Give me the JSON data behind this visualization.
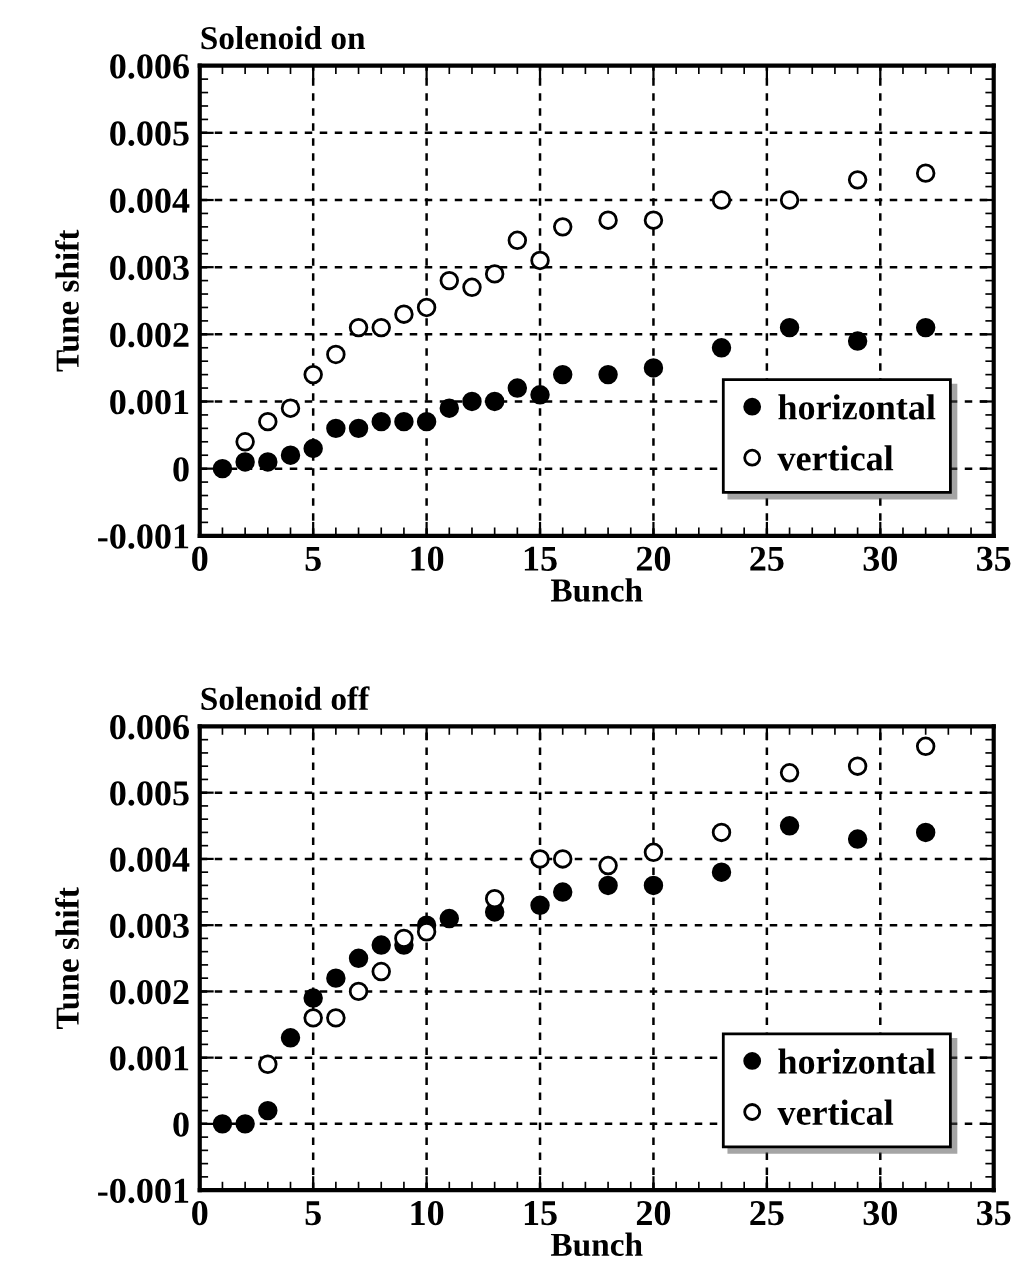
{
  "chart_data": [
    {
      "type": "scatter",
      "title": "Solenoid on",
      "xlabel": "Bunch",
      "ylabel": "Tune shift",
      "xlim": [
        0,
        35
      ],
      "xticks": [
        0,
        5,
        10,
        15,
        20,
        25,
        30,
        35
      ],
      "ylim": [
        -0.001,
        0.006
      ],
      "yticks": [
        -0.001,
        0,
        0.001,
        0.002,
        0.003,
        0.004,
        0.005,
        0.006
      ],
      "grid": true,
      "legend": "bottom right",
      "marker": "circle",
      "series": [
        {
          "name": "horizontal",
          "color": "#000000",
          "x": [
            1,
            2,
            3,
            4,
            5,
            6,
            7,
            8,
            9,
            10,
            11,
            12,
            13,
            14,
            15,
            16,
            18,
            20,
            23,
            26,
            29,
            32
          ],
          "values": [
            0,
            0.0001,
            0.0001,
            0.0002,
            0.0003,
            0.0006,
            0.0006,
            0.0007,
            0.0007,
            0.0007,
            0.0009,
            0.001,
            0.001,
            0.0012,
            0.0011,
            0.0014,
            0.0014,
            0.0015,
            0.0018,
            0.0021,
            0.0019,
            0.0021
          ]
        },
        {
          "name": "vertical",
          "color": "#ffffff",
          "x": [
            2,
            3,
            4,
            5,
            6,
            7,
            8,
            9,
            10,
            11,
            12,
            13,
            14,
            15,
            16,
            18,
            20,
            23,
            26,
            29,
            32
          ],
          "values": [
            0.0004,
            0.0007,
            0.0009,
            0.0014,
            0.0017,
            0.0021,
            0.0021,
            0.0023,
            0.0024,
            0.0028,
            0.0027,
            0.0029,
            0.0034,
            0.0031,
            0.0036,
            0.0037,
            0.0037,
            0.004,
            0.004,
            0.0043,
            0.0044
          ]
        }
      ]
    },
    {
      "type": "scatter",
      "title": "Solenoid off",
      "xlabel": "Bunch",
      "ylabel": "Tune shift",
      "xlim": [
        0,
        35
      ],
      "xticks": [
        0,
        5,
        10,
        15,
        20,
        25,
        30,
        35
      ],
      "ylim": [
        -0.001,
        0.006
      ],
      "yticks": [
        -0.001,
        0,
        0.001,
        0.002,
        0.003,
        0.004,
        0.005,
        0.006
      ],
      "grid": true,
      "legend": "bottom right",
      "marker": "circle",
      "series": [
        {
          "name": "horizontal",
          "color": "#000000",
          "x": [
            1,
            2,
            3,
            4,
            5,
            6,
            7,
            8,
            9,
            10,
            11,
            13,
            15,
            16,
            18,
            20,
            23,
            26,
            29,
            32
          ],
          "values": [
            0,
            0,
            0.0002,
            0.0013,
            0.0019,
            0.0022,
            0.0025,
            0.0027,
            0.0027,
            0.003,
            0.0031,
            0.0032,
            0.0033,
            0.0035,
            0.0036,
            0.0036,
            0.0038,
            0.0045,
            0.0043,
            0.0044
          ]
        },
        {
          "name": "vertical",
          "color": "#ffffff",
          "x": [
            3,
            5,
            6,
            7,
            8,
            9,
            10,
            13,
            15,
            16,
            18,
            20,
            23,
            26,
            29,
            32
          ],
          "values": [
            0.0009,
            0.0016,
            0.0016,
            0.002,
            0.0023,
            0.0028,
            0.0029,
            0.0034,
            0.004,
            0.004,
            0.0039,
            0.0041,
            0.0044,
            0.0053,
            0.0054,
            0.0057
          ]
        }
      ]
    }
  ]
}
